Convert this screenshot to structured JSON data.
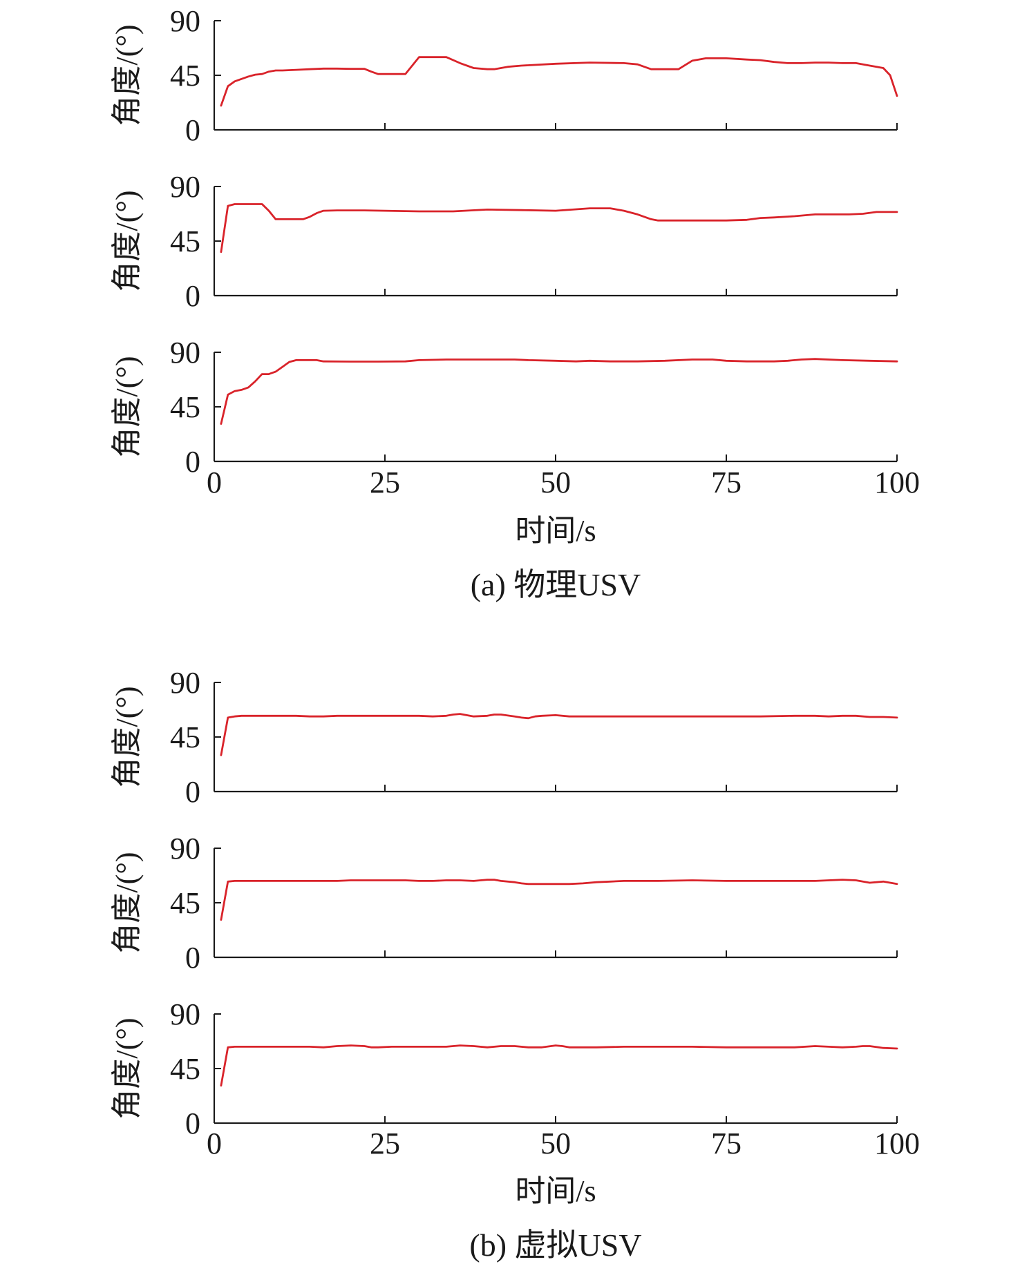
{
  "figure": {
    "groups": [
      {
        "caption": "(a) 物理USV",
        "xlabel": "时间/s",
        "x_ticks": [
          "0",
          "25",
          "50",
          "75",
          "100"
        ],
        "panels": [
          {
            "ylabel": "角度/(°)",
            "y_ticks": [
              "0",
              "45",
              "90"
            ]
          },
          {
            "ylabel": "角度/(°)",
            "y_ticks": [
              "0",
              "45",
              "90"
            ]
          },
          {
            "ylabel": "角度/(°)",
            "y_ticks": [
              "0",
              "45",
              "90"
            ]
          }
        ]
      },
      {
        "caption": "(b) 虚拟USV",
        "xlabel": "时间/s",
        "x_ticks": [
          "0",
          "25",
          "50",
          "75",
          "100"
        ],
        "panels": [
          {
            "ylabel": "角度/(°)",
            "y_ticks": [
              "0",
              "45",
              "90"
            ]
          },
          {
            "ylabel": "角度/(°)",
            "y_ticks": [
              "0",
              "45",
              "90"
            ]
          },
          {
            "ylabel": "角度/(°)",
            "y_ticks": [
              "0",
              "45",
              "90"
            ]
          }
        ]
      }
    ]
  },
  "chart_data": [
    {
      "type": "line",
      "group": "(a) 物理USV",
      "ylabel": "角度/(°)",
      "xlabel": "时间/s",
      "xlim": [
        0,
        100
      ],
      "ylim": [
        0,
        90
      ],
      "color": "#d9232a",
      "x": [
        1,
        2,
        3,
        4,
        5,
        6,
        7,
        8,
        9,
        10,
        12,
        14,
        16,
        18,
        20,
        22,
        23,
        24,
        26,
        28,
        30,
        32,
        34,
        36,
        38,
        40,
        41,
        43,
        45,
        50,
        55,
        60,
        62,
        63,
        64,
        66,
        68,
        70,
        72,
        75,
        78,
        80,
        82,
        84,
        86,
        88,
        90,
        92,
        94,
        96,
        98,
        99,
        100
      ],
      "y": [
        20,
        36,
        40,
        42,
        44,
        45.5,
        46,
        48,
        49,
        49,
        49.5,
        50,
        50.5,
        50.5,
        50.3,
        50.3,
        48,
        46,
        46,
        46,
        60,
        60,
        60,
        55,
        51,
        50,
        50,
        52,
        53,
        54.5,
        55.5,
        55,
        54,
        52,
        50,
        50,
        50,
        57,
        59,
        59,
        58,
        57.5,
        56,
        55,
        55,
        55.5,
        55.5,
        55,
        55,
        53,
        51,
        45,
        28
      ]
    },
    {
      "type": "line",
      "group": "(a) 物理USV",
      "ylabel": "角度/(°)",
      "xlim": [
        0,
        100
      ],
      "ylim": [
        0,
        90
      ],
      "color": "#d9232a",
      "x": [
        1,
        2,
        3,
        4,
        5,
        6,
        7,
        8,
        9,
        10,
        11,
        13,
        14,
        15,
        16,
        18,
        20,
        22,
        25,
        30,
        35,
        40,
        45,
        50,
        55,
        58,
        60,
        62,
        64,
        65,
        68,
        70,
        72,
        75,
        78,
        80,
        82,
        85,
        88,
        90,
        93,
        95,
        97,
        100
      ],
      "y": [
        36,
        74,
        75.5,
        75.5,
        75.5,
        75.5,
        75.5,
        70,
        63,
        63,
        63,
        63,
        65,
        68,
        70,
        70.3,
        70.3,
        70.3,
        70,
        69.5,
        69.5,
        71,
        70.5,
        70,
        72,
        72,
        70,
        67,
        63,
        62,
        62,
        62,
        62,
        62,
        62.5,
        64,
        64.5,
        65.5,
        67,
        67,
        67,
        67.5,
        69,
        69
      ]
    },
    {
      "type": "line",
      "group": "(a) 物理USV",
      "ylabel": "角度/(°)",
      "xlabel": "时间/s",
      "x_ticks": [
        "0",
        "25",
        "50",
        "75",
        "100"
      ],
      "xlim": [
        0,
        100
      ],
      "ylim": [
        0,
        90
      ],
      "color": "#d9232a",
      "x": [
        1,
        2,
        3,
        4,
        5,
        6,
        7,
        8,
        9,
        10,
        11,
        12,
        13,
        14,
        15,
        16,
        20,
        24,
        28,
        30,
        34,
        38,
        42,
        44,
        46,
        50,
        53,
        55,
        58,
        62,
        66,
        70,
        73,
        75,
        78,
        80,
        82,
        84,
        86,
        88,
        92,
        96,
        100
      ],
      "y": [
        31,
        55,
        58,
        59,
        61,
        66,
        72,
        72,
        74,
        78,
        82,
        83.5,
        83.5,
        83.5,
        83.5,
        82.5,
        82.3,
        82.3,
        82.5,
        83.5,
        84,
        84,
        84,
        84,
        83.5,
        83,
        82.5,
        83,
        82.5,
        82.5,
        83,
        84,
        84,
        83,
        82.5,
        82.5,
        82.5,
        83,
        84,
        84.5,
        83.5,
        83,
        82.5
      ]
    },
    {
      "type": "line",
      "group": "(b) 虚拟USV",
      "ylabel": "角度/(°)",
      "xlim": [
        0,
        100
      ],
      "ylim": [
        0,
        90
      ],
      "color": "#d9232a",
      "x": [
        1,
        2,
        3,
        4,
        6,
        8,
        10,
        12,
        14,
        16,
        18,
        20,
        22,
        24,
        26,
        28,
        30,
        32,
        34,
        35,
        36,
        38,
        40,
        41,
        42,
        44,
        45,
        46,
        47,
        48,
        50,
        52,
        55,
        60,
        65,
        70,
        75,
        80,
        85,
        88,
        90,
        92,
        94,
        96,
        98,
        100
      ],
      "y": [
        30,
        61,
        62,
        62.5,
        62.5,
        62.5,
        62.5,
        62.5,
        62,
        62,
        62.5,
        62.5,
        62.5,
        62.5,
        62.5,
        62.5,
        62.5,
        62,
        62.5,
        63.5,
        64,
        62,
        62.5,
        63.5,
        63.5,
        62,
        61,
        60.5,
        62,
        62.5,
        63,
        62,
        62,
        62,
        62,
        62,
        62,
        62,
        62.5,
        62.5,
        62,
        62.5,
        62.5,
        61.5,
        61.5,
        61
      ]
    },
    {
      "type": "line",
      "group": "(b) 虚拟USV",
      "ylabel": "角度/(°)",
      "xlim": [
        0,
        100
      ],
      "ylim": [
        0,
        90
      ],
      "color": "#d9232a",
      "x": [
        1,
        2,
        3,
        4,
        6,
        8,
        10,
        12,
        14,
        16,
        18,
        20,
        22,
        24,
        26,
        28,
        30,
        32,
        34,
        36,
        38,
        39,
        40,
        41,
        42,
        44,
        45,
        46,
        48,
        50,
        52,
        54,
        56,
        58,
        60,
        65,
        70,
        75,
        80,
        85,
        88,
        90,
        92,
        94,
        96,
        98,
        100
      ],
      "y": [
        31,
        62.5,
        63,
        63,
        63,
        63,
        63,
        63,
        63,
        63,
        63,
        63.5,
        63.5,
        63.5,
        63.5,
        63.5,
        63,
        63,
        63.5,
        63.5,
        63,
        63.5,
        64,
        64,
        63,
        62,
        61,
        60.5,
        60.5,
        60.5,
        60.5,
        61,
        62,
        62.5,
        63,
        63,
        63.5,
        63,
        63,
        63,
        63,
        63.5,
        64,
        63.5,
        61.5,
        62.5,
        60.5
      ]
    },
    {
      "type": "line",
      "group": "(b) 虚拟USV",
      "ylabel": "角度/(°)",
      "xlabel": "时间/s",
      "x_ticks": [
        "0",
        "25",
        "50",
        "75",
        "100"
      ],
      "xlim": [
        0,
        100
      ],
      "ylim": [
        0,
        90
      ],
      "color": "#d9232a",
      "x": [
        1,
        2,
        3,
        4,
        6,
        8,
        10,
        12,
        14,
        16,
        18,
        20,
        22,
        23,
        24,
        26,
        28,
        30,
        34,
        36,
        38,
        40,
        42,
        43,
        44,
        46,
        48,
        50,
        51,
        52,
        54,
        56,
        60,
        65,
        70,
        75,
        80,
        85,
        88,
        90,
        92,
        94,
        95,
        96,
        98,
        100
      ],
      "y": [
        31,
        62.5,
        63,
        63,
        63,
        63,
        63,
        63,
        63,
        62.5,
        63.5,
        64,
        63.5,
        62.5,
        62.5,
        63,
        63,
        63,
        63,
        64,
        63.5,
        62.5,
        63.5,
        63.5,
        63.5,
        62.5,
        62.5,
        64,
        63.5,
        62.5,
        62.5,
        62.5,
        63,
        63,
        63,
        62.5,
        62.5,
        62.5,
        63.5,
        63,
        62.5,
        63,
        63.5,
        63.5,
        62,
        61.5
      ]
    }
  ]
}
